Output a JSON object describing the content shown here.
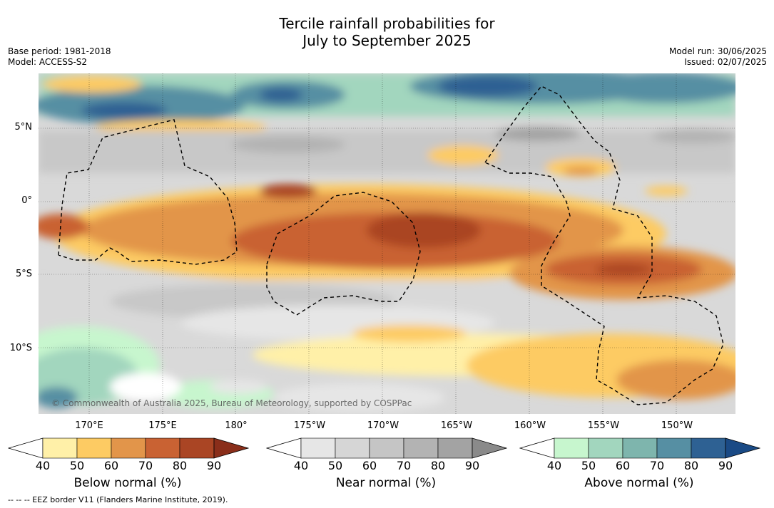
{
  "title_line1": "Tercile rainfall probabilities for",
  "title_line2": "July to September 2025",
  "base_period": "Base period: 1981-2018",
  "model": "Model: ACCESS-S2",
  "model_run": "Model run: 30/06/2025",
  "issued": "Issued: 02/07/2025",
  "lat_labels": [
    "5°N",
    "0°",
    "5°S",
    "10°S"
  ],
  "lon_labels": [
    "170°E",
    "175°E",
    "180°",
    "175°W",
    "170°W",
    "165°W",
    "160°W",
    "155°W",
    "150°W"
  ],
  "copyright": "© Commonwealth of Australia 2025, Bureau of Meteorology, supported by COSPPac",
  "colorbars": [
    {
      "label": "Below normal (%)",
      "colors": [
        "#ffffff",
        "#fff0a8",
        "#fdcb63",
        "#e2954a",
        "#c96233",
        "#aa4524",
        "#8a2e1a"
      ]
    },
    {
      "label": "Near normal (%)",
      "colors": [
        "#ffffff",
        "#e6e6e6",
        "#d6d6d6",
        "#c5c5c5",
        "#b3b3b3",
        "#a3a3a3",
        "#8a8a8a"
      ]
    },
    {
      "label": "Above normal (%)",
      "colors": [
        "#ffffff",
        "#c7f6ce",
        "#a2d6be",
        "#7eb5ad",
        "#568fa3",
        "#2e6193",
        "#1a4a85"
      ]
    }
  ],
  "colorbar_ticks": [
    "40",
    "50",
    "60",
    "70",
    "80",
    "90"
  ],
  "footnote": "--  --  -- EEZ border V11 (Flanders Marine Institute, 2019)."
}
